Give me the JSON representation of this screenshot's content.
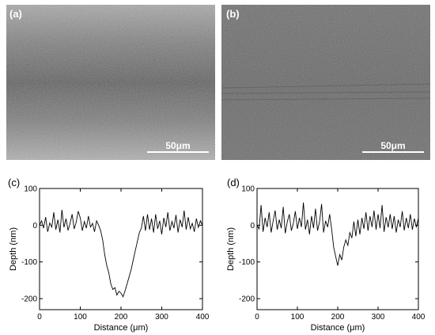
{
  "figure": {
    "panels": [
      {
        "id": "a",
        "label": "(a)",
        "scale_bar": "50μm"
      },
      {
        "id": "b",
        "label": "(b)",
        "scale_bar": "50μm"
      }
    ]
  },
  "chart_data": [
    {
      "type": "line",
      "panel_label": "(c)",
      "xlabel": "Distance (μm)",
      "ylabel": "Depth (nm)",
      "xlim": [
        0,
        400
      ],
      "ylim": [
        -230,
        100
      ],
      "xticks": [
        0,
        100,
        200,
        300,
        400
      ],
      "yticks": [
        100,
        0,
        -100,
        -200
      ],
      "grid": false,
      "series": [
        {
          "x": [
            0,
            5,
            10,
            15,
            20,
            25,
            30,
            35,
            40,
            45,
            50,
            55,
            60,
            65,
            70,
            75,
            80,
            85,
            90,
            95,
            100,
            105,
            110,
            115,
            120,
            125,
            130,
            135,
            140,
            145,
            150,
            155,
            160,
            165,
            170,
            175,
            180,
            185,
            190,
            195,
            200,
            205,
            210,
            215,
            220,
            225,
            230,
            235,
            240,
            245,
            250,
            255,
            260,
            265,
            270,
            275,
            280,
            285,
            290,
            295,
            300,
            305,
            310,
            315,
            320,
            325,
            330,
            335,
            340,
            345,
            350,
            355,
            360,
            365,
            370,
            375,
            380,
            385,
            390,
            395,
            400
          ],
          "y": [
            0,
            12,
            -8,
            22,
            -18,
            6,
            -5,
            35,
            -12,
            15,
            -20,
            42,
            -6,
            18,
            -14,
            5,
            30,
            -10,
            8,
            38,
            20,
            -15,
            10,
            -8,
            25,
            -5,
            5,
            -18,
            12,
            0,
            -15,
            -40,
            -80,
            -110,
            -130,
            -160,
            -175,
            -170,
            -190,
            -180,
            -185,
            -195,
            -178,
            -160,
            -140,
            -120,
            -95,
            -70,
            -45,
            -20,
            -8,
            25,
            -15,
            30,
            -12,
            18,
            -20,
            30,
            -10,
            12,
            -25,
            20,
            -5,
            35,
            -15,
            10,
            -8,
            28,
            -20,
            15,
            -5,
            40,
            -12,
            22,
            -10,
            5,
            -18,
            18,
            -6,
            12,
            0
          ]
        }
      ]
    },
    {
      "type": "line",
      "panel_label": "(d)",
      "xlabel": "Distance (μm)",
      "ylabel": "Depth (nm)",
      "xlim": [
        0,
        400
      ],
      "ylim": [
        -230,
        100
      ],
      "xticks": [
        0,
        100,
        200,
        300,
        400
      ],
      "yticks": [
        100,
        0,
        -100,
        -200
      ],
      "grid": false,
      "series": [
        {
          "x": [
            0,
            5,
            10,
            15,
            20,
            25,
            30,
            35,
            40,
            45,
            50,
            55,
            60,
            65,
            70,
            75,
            80,
            85,
            90,
            95,
            100,
            105,
            110,
            115,
            120,
            125,
            130,
            135,
            140,
            145,
            150,
            155,
            160,
            165,
            170,
            175,
            180,
            185,
            190,
            195,
            200,
            205,
            210,
            215,
            220,
            225,
            230,
            235,
            240,
            245,
            250,
            255,
            260,
            265,
            270,
            275,
            280,
            285,
            290,
            295,
            300,
            305,
            310,
            315,
            320,
            325,
            330,
            335,
            340,
            345,
            350,
            355,
            360,
            365,
            370,
            375,
            380,
            385,
            390,
            395,
            400
          ],
          "y": [
            0,
            -10,
            55,
            -18,
            20,
            -5,
            35,
            -20,
            12,
            40,
            -12,
            15,
            -8,
            50,
            -22,
            10,
            30,
            -15,
            5,
            38,
            -10,
            20,
            -5,
            62,
            -12,
            15,
            -25,
            25,
            -8,
            45,
            -15,
            10,
            58,
            -20,
            12,
            -5,
            30,
            -12,
            -60,
            -85,
            -110,
            -80,
            -95,
            -60,
            -40,
            -55,
            -20,
            -35,
            10,
            -30,
            15,
            -25,
            20,
            -10,
            35,
            -15,
            25,
            -5,
            40,
            -12,
            30,
            -8,
            55,
            -18,
            22,
            -6,
            30,
            -10,
            25,
            -20,
            15,
            -5,
            38,
            -14,
            20,
            -8,
            30,
            -12,
            18,
            -6,
            20
          ]
        }
      ]
    }
  ]
}
